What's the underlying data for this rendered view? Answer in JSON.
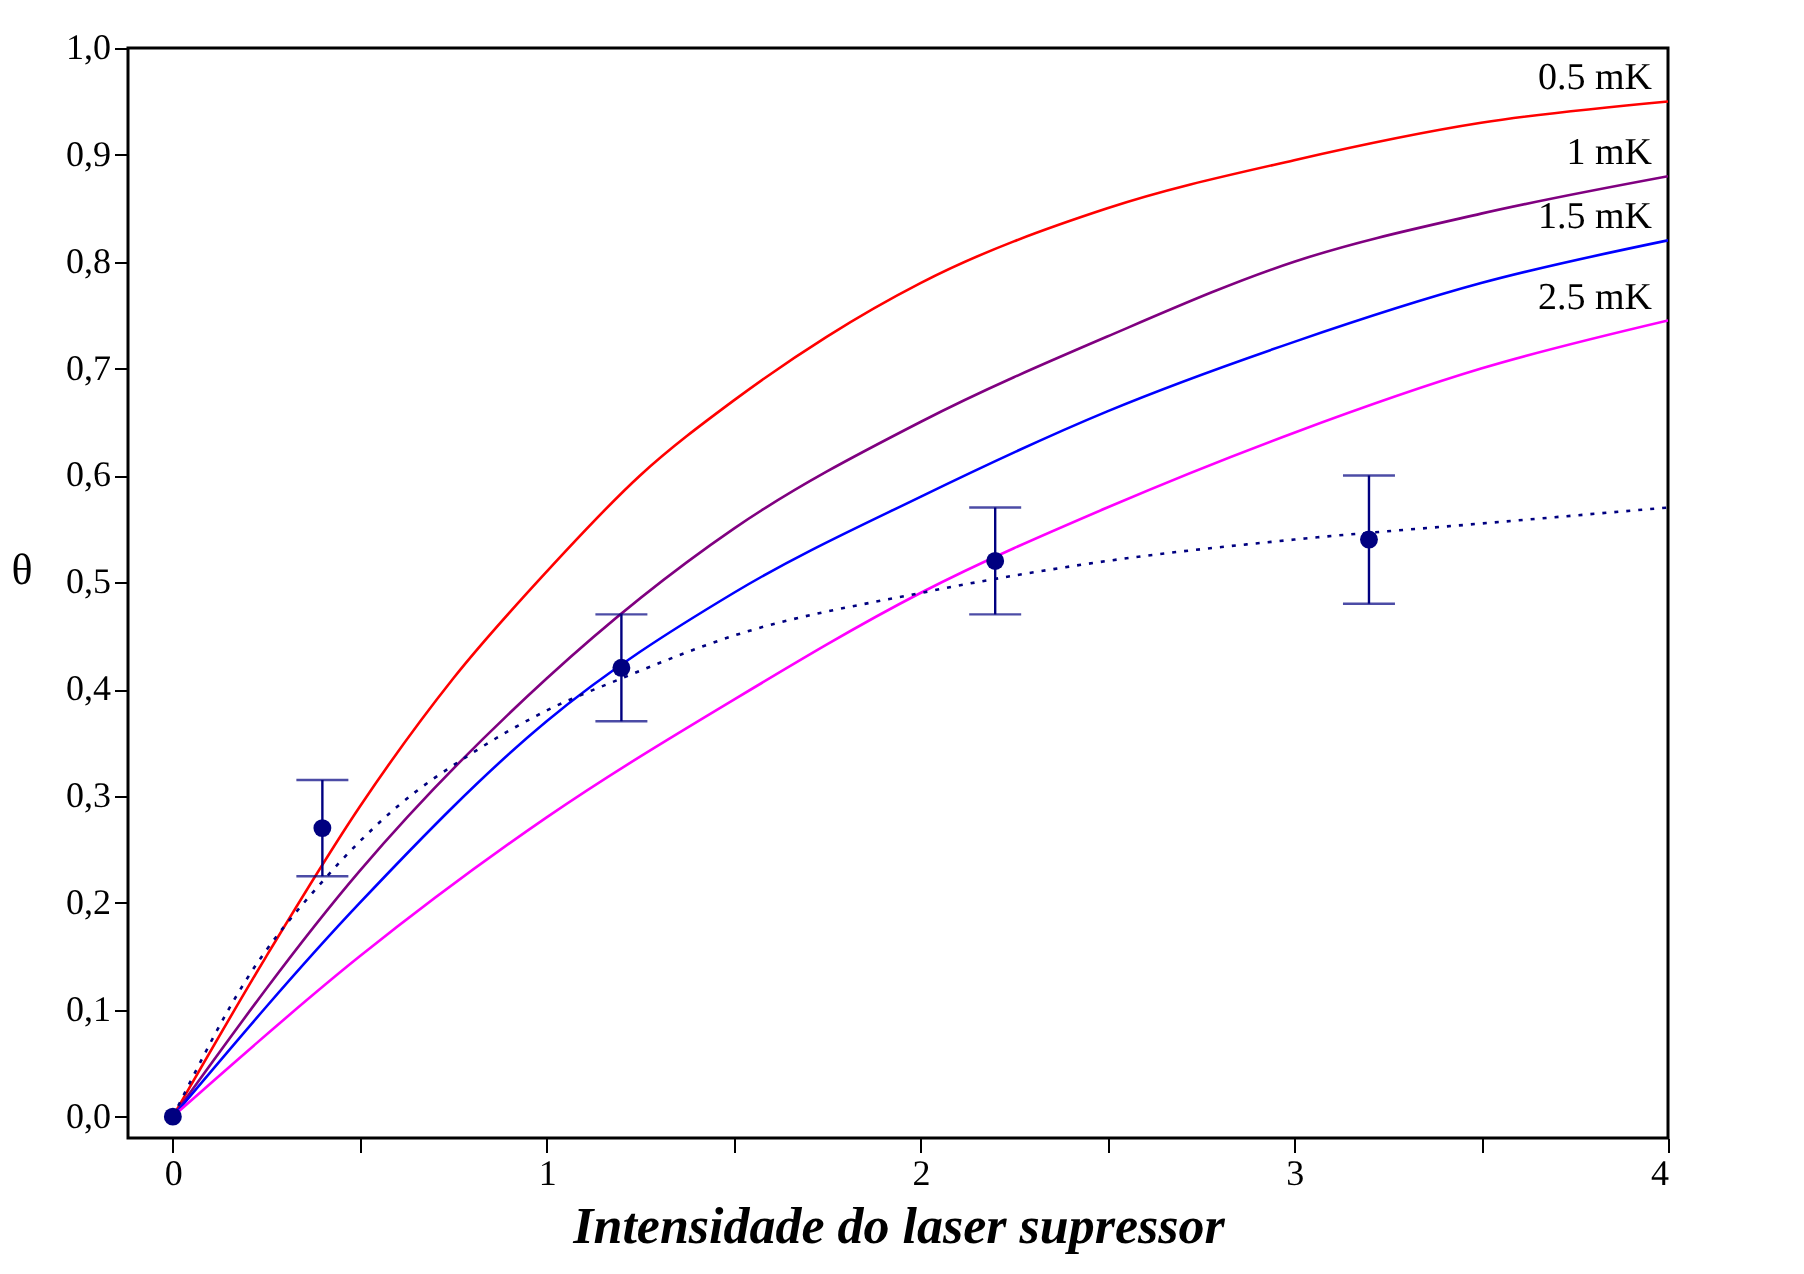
{
  "chart_data": {
    "type": "line",
    "xlabel": "Intensidade do laser supressor",
    "ylabel": "θ",
    "xlim": [
      -0.12,
      4.0
    ],
    "ylim": [
      -0.02,
      1.0
    ],
    "xticks": [
      0,
      {
        "value": 0.5,
        "label": null
      },
      1,
      {
        "value": 1.5,
        "label": null
      },
      2,
      {
        "value": 2.5,
        "label": null
      },
      3,
      {
        "value": 3.5,
        "label": null
      },
      4
    ],
    "yticks": [
      {
        "value": 0.0,
        "label": "0,0"
      },
      {
        "value": 0.1,
        "label": "0,1"
      },
      {
        "value": 0.2,
        "label": "0,2"
      },
      {
        "value": 0.3,
        "label": "0,3"
      },
      {
        "value": 0.4,
        "label": "0,4"
      },
      {
        "value": 0.5,
        "label": "0,5"
      },
      {
        "value": 0.6,
        "label": "0,6"
      },
      {
        "value": 0.7,
        "label": "0,7"
      },
      {
        "value": 0.8,
        "label": "0,8"
      },
      {
        "value": 0.9,
        "label": "0,9"
      },
      {
        "value": 1.0,
        "label": "1,0"
      }
    ],
    "grid": false,
    "series": [
      {
        "name": "0.5 mK",
        "color": "#ff0000",
        "line_style": "solid",
        "x": [
          0,
          0.25,
          0.5,
          0.75,
          1,
          1.25,
          1.5,
          1.75,
          2,
          2.5,
          3,
          3.5,
          4
        ],
        "values": [
          0,
          0.15,
          0.29,
          0.41,
          0.51,
          0.6,
          0.67,
          0.73,
          0.78,
          0.85,
          0.895,
          0.93,
          0.95
        ]
      },
      {
        "name": "1 mK",
        "color": "#800080",
        "line_style": "solid",
        "x": [
          0,
          0.5,
          1,
          1.5,
          2,
          2.5,
          3,
          3.5,
          4
        ],
        "values": [
          0,
          0.23,
          0.41,
          0.55,
          0.65,
          0.73,
          0.8,
          0.845,
          0.88
        ]
      },
      {
        "name": "1.5 mK",
        "color": "#0000ff",
        "line_style": "solid",
        "x": [
          0,
          0.5,
          1,
          1.5,
          2,
          2.5,
          3,
          3.5,
          4
        ],
        "values": [
          0,
          0.2,
          0.37,
          0.49,
          0.58,
          0.66,
          0.725,
          0.78,
          0.82
        ]
      },
      {
        "name": "2.5 mK",
        "color": "#ff00ff",
        "line_style": "solid",
        "x": [
          0,
          0.5,
          1,
          1.5,
          2,
          2.5,
          3,
          3.5,
          4
        ],
        "values": [
          0,
          0.15,
          0.28,
          0.39,
          0.49,
          0.57,
          0.64,
          0.7,
          0.745
        ]
      },
      {
        "color": "#000080",
        "line_style": "dotted",
        "x": [
          0,
          0.2,
          0.4,
          0.6,
          0.8,
          1,
          1.2,
          1.5,
          2,
          2.5,
          3,
          3.5,
          4
        ],
        "values": [
          0,
          0.13,
          0.22,
          0.29,
          0.34,
          0.38,
          0.41,
          0.45,
          0.49,
          0.52,
          0.54,
          0.555,
          0.57
        ]
      },
      {
        "type": "scatter",
        "marker": "circle",
        "color": "#000080",
        "x": [
          0,
          0.4,
          1.2,
          2.2,
          3.2
        ],
        "values": [
          0,
          0.27,
          0.42,
          0.52,
          0.54
        ],
        "errors": [
          null,
          0.045,
          0.05,
          0.05,
          0.06
        ]
      }
    ]
  }
}
